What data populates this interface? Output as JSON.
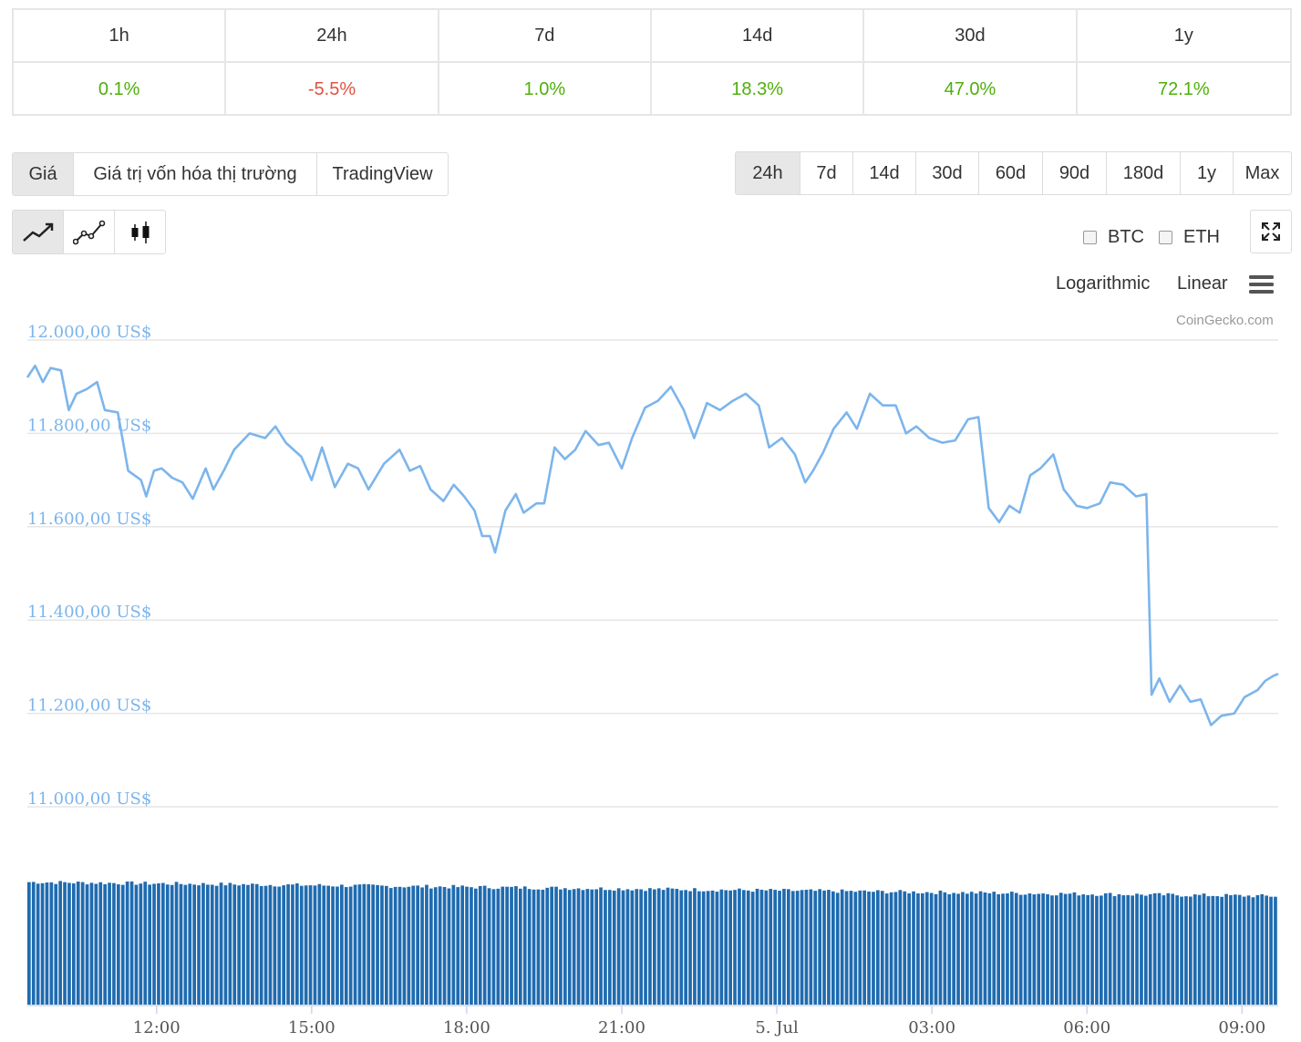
{
  "performance": {
    "periods": [
      "1h",
      "24h",
      "7d",
      "14d",
      "30d",
      "1y"
    ],
    "changes": [
      "0.1%",
      "-5.5%",
      "1.0%",
      "18.3%",
      "47.0%",
      "72.1%"
    ]
  },
  "view_tabs": [
    "Giá",
    "Giá trị vốn hóa thị trường",
    "TradingView"
  ],
  "range_tabs": [
    "24h",
    "7d",
    "14d",
    "30d",
    "60d",
    "90d",
    "180d",
    "1y",
    "Max"
  ],
  "compare": {
    "btc": "BTC",
    "eth": "ETH"
  },
  "scale": {
    "log": "Logarithmic",
    "linear": "Linear"
  },
  "credit": "CoinGecko.com",
  "colors": {
    "line": "#7cb5ec",
    "volume": "#1f6bb0",
    "positive": "#4eaf0a",
    "negative": "#e15241",
    "axis_label": "#7cb5ec"
  },
  "chart_data": {
    "type": "line",
    "title": "",
    "ylabel": "",
    "ylim": [
      11000,
      12000
    ],
    "y_ticks": [
      12000,
      11800,
      11600,
      11400,
      11200,
      11000
    ],
    "y_tick_labels": [
      "12.000,00 US$",
      "11.800,00 US$",
      "11.600,00 US$",
      "11.400,00 US$",
      "11.200,00 US$",
      "11.000,00 US$"
    ],
    "x_range_hours": [
      9.5,
      33.7
    ],
    "x_ticks": [
      12,
      15,
      18,
      21,
      24,
      27,
      30,
      33
    ],
    "x_tick_labels": [
      "12:00",
      "15:00",
      "18:00",
      "21:00",
      "5. Jul",
      "03:00",
      "06:00",
      "09:00"
    ],
    "price_series": {
      "name": "Giá",
      "points": [
        [
          9.5,
          11920
        ],
        [
          9.65,
          11945
        ],
        [
          9.8,
          11910
        ],
        [
          9.95,
          11940
        ],
        [
          10.15,
          11935
        ],
        [
          10.3,
          11850
        ],
        [
          10.45,
          11885
        ],
        [
          10.65,
          11895
        ],
        [
          10.85,
          11910
        ],
        [
          11.0,
          11850
        ],
        [
          11.25,
          11845
        ],
        [
          11.45,
          11720
        ],
        [
          11.7,
          11700
        ],
        [
          11.8,
          11665
        ],
        [
          11.95,
          11720
        ],
        [
          12.1,
          11725
        ],
        [
          12.3,
          11705
        ],
        [
          12.5,
          11695
        ],
        [
          12.7,
          11660
        ],
        [
          12.95,
          11725
        ],
        [
          13.1,
          11680
        ],
        [
          13.3,
          11720
        ],
        [
          13.5,
          11765
        ],
        [
          13.8,
          11800
        ],
        [
          14.1,
          11790
        ],
        [
          14.3,
          11815
        ],
        [
          14.5,
          11780
        ],
        [
          14.8,
          11750
        ],
        [
          15.0,
          11700
        ],
        [
          15.2,
          11770
        ],
        [
          15.45,
          11685
        ],
        [
          15.7,
          11735
        ],
        [
          15.9,
          11725
        ],
        [
          16.1,
          11680
        ],
        [
          16.4,
          11735
        ],
        [
          16.7,
          11765
        ],
        [
          16.9,
          11720
        ],
        [
          17.1,
          11730
        ],
        [
          17.3,
          11680
        ],
        [
          17.55,
          11655
        ],
        [
          17.75,
          11690
        ],
        [
          17.95,
          11665
        ],
        [
          18.15,
          11635
        ],
        [
          18.3,
          11580
        ],
        [
          18.45,
          11580
        ],
        [
          18.55,
          11545
        ],
        [
          18.75,
          11635
        ],
        [
          18.95,
          11670
        ],
        [
          19.1,
          11630
        ],
        [
          19.35,
          11650
        ],
        [
          19.5,
          11650
        ],
        [
          19.7,
          11770
        ],
        [
          19.9,
          11745
        ],
        [
          20.1,
          11765
        ],
        [
          20.3,
          11805
        ],
        [
          20.55,
          11775
        ],
        [
          20.75,
          11780
        ],
        [
          21.0,
          11725
        ],
        [
          21.2,
          11790
        ],
        [
          21.45,
          11855
        ],
        [
          21.7,
          11870
        ],
        [
          21.95,
          11900
        ],
        [
          22.2,
          11850
        ],
        [
          22.4,
          11790
        ],
        [
          22.65,
          11865
        ],
        [
          22.9,
          11850
        ],
        [
          23.15,
          11870
        ],
        [
          23.4,
          11885
        ],
        [
          23.65,
          11860
        ],
        [
          23.85,
          11770
        ],
        [
          24.1,
          11790
        ],
        [
          24.35,
          11755
        ],
        [
          24.55,
          11695
        ],
        [
          24.7,
          11720
        ],
        [
          24.9,
          11760
        ],
        [
          25.1,
          11810
        ],
        [
          25.35,
          11845
        ],
        [
          25.55,
          11810
        ],
        [
          25.8,
          11885
        ],
        [
          26.05,
          11860
        ],
        [
          26.3,
          11860
        ],
        [
          26.5,
          11800
        ],
        [
          26.7,
          11815
        ],
        [
          26.95,
          11790
        ],
        [
          27.2,
          11780
        ],
        [
          27.45,
          11785
        ],
        [
          27.7,
          11830
        ],
        [
          27.9,
          11835
        ],
        [
          28.1,
          11640
        ],
        [
          28.3,
          11610
        ],
        [
          28.5,
          11645
        ],
        [
          28.7,
          11630
        ],
        [
          28.9,
          11710
        ],
        [
          29.1,
          11725
        ],
        [
          29.35,
          11755
        ],
        [
          29.55,
          11680
        ],
        [
          29.8,
          11645
        ],
        [
          30.0,
          11640
        ],
        [
          30.25,
          11650
        ],
        [
          30.45,
          11695
        ],
        [
          30.7,
          11690
        ],
        [
          30.95,
          11665
        ],
        [
          31.15,
          11670
        ],
        [
          31.25,
          11240
        ],
        [
          31.4,
          11275
        ],
        [
          31.6,
          11225
        ],
        [
          31.8,
          11260
        ],
        [
          32.0,
          11225
        ],
        [
          32.2,
          11230
        ],
        [
          32.4,
          11175
        ],
        [
          32.6,
          11195
        ],
        [
          32.85,
          11200
        ],
        [
          33.05,
          11235
        ],
        [
          33.3,
          11250
        ],
        [
          33.45,
          11270
        ],
        [
          33.6,
          11280
        ],
        [
          33.7,
          11285
        ]
      ]
    },
    "volume_series": {
      "name": "Volume",
      "bars": 280,
      "relative_level_start": 0.96,
      "relative_level_end": 0.85
    }
  }
}
